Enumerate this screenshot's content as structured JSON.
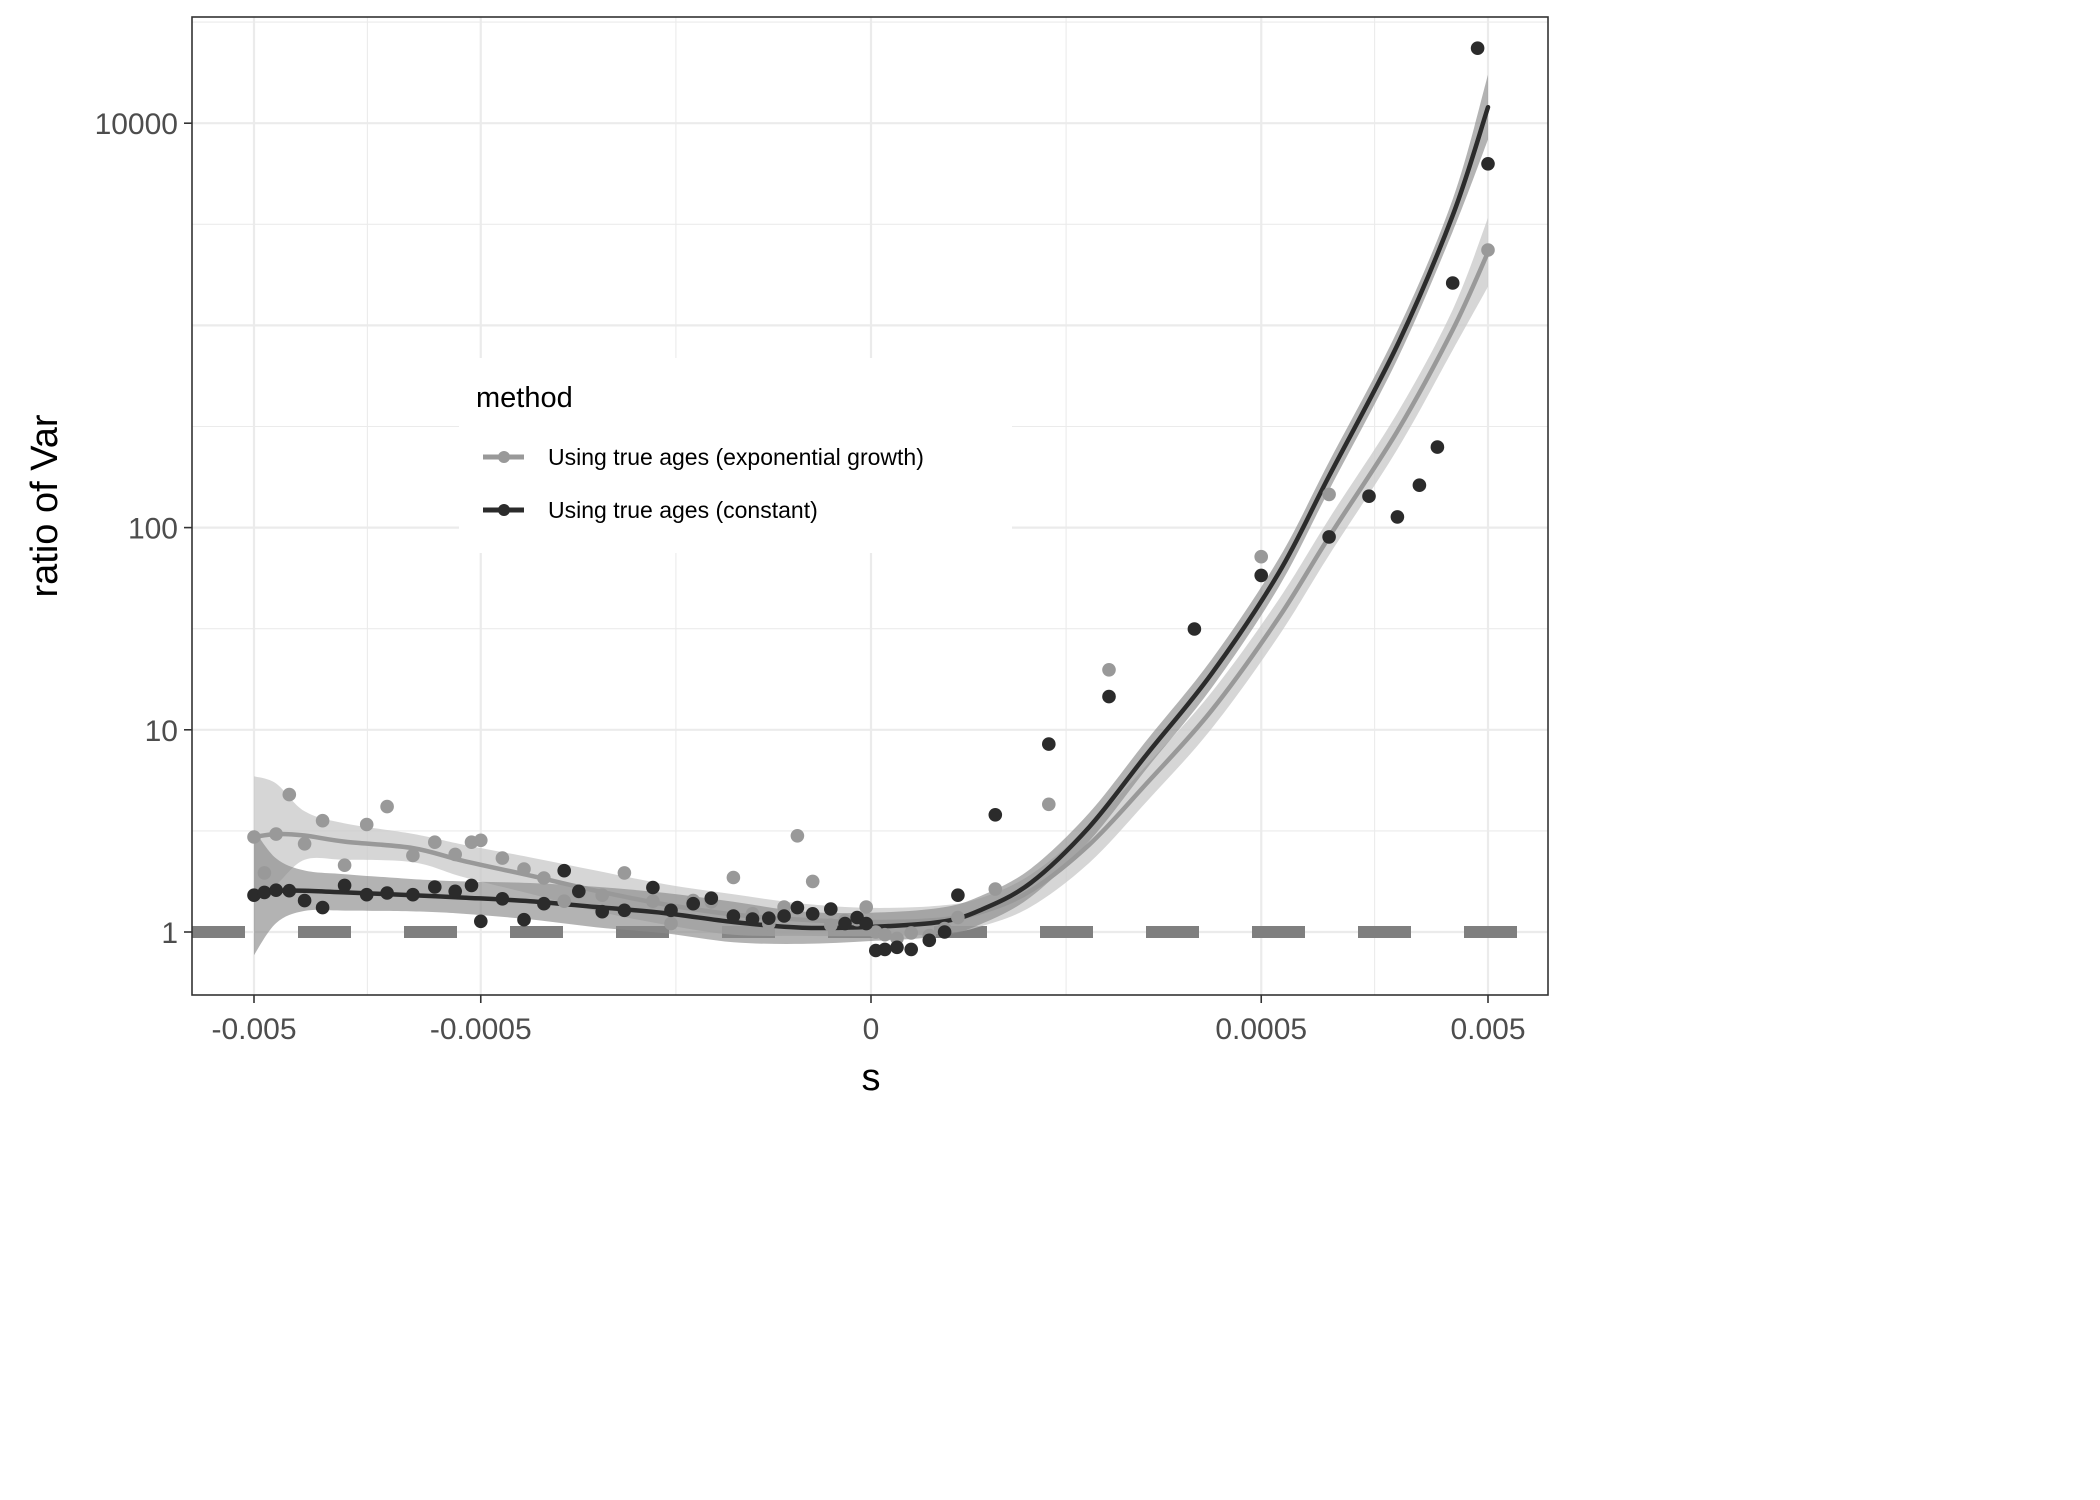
{
  "chart_data": {
    "type": "scatter",
    "xlabel": "s",
    "ylabel": "ratio of Var",
    "x_scale": "pseudo-log (symmetric)",
    "y_scale": "log10",
    "x_ticks": [
      {
        "value": -0.005,
        "label": "-0.005"
      },
      {
        "value": -0.0005,
        "label": "-0.0005"
      },
      {
        "value": 0,
        "label": "0"
      },
      {
        "value": 0.0005,
        "label": "0.0005"
      },
      {
        "value": 0.005,
        "label": "0.005"
      }
    ],
    "y_ticks": [
      {
        "value": 1,
        "label": "1"
      },
      {
        "value": 10,
        "label": "10"
      },
      {
        "value": 100,
        "label": "100"
      },
      {
        "value": 10000,
        "label": "10000"
      }
    ],
    "ylim": [
      0.32,
      69000
    ],
    "grid": true,
    "reference_line": {
      "y": 1,
      "style": "dashed",
      "color": "#7f7f7f"
    },
    "legend": {
      "title": "method",
      "position": "inside-left-center",
      "entries": [
        {
          "label": "Using true ages (exponential growth)",
          "color": "#999999"
        },
        {
          "label": "Using true ages (constant)",
          "color": "#2b2b2b"
        }
      ]
    },
    "series": [
      {
        "name": "Using true ages (exponential growth)",
        "color": "#999999",
        "band_color": "#c8c8c8",
        "points": [
          {
            "x": -0.005,
            "y": 2.95
          },
          {
            "x": -0.0045,
            "y": 1.96
          },
          {
            "x": -0.004,
            "y": 3.05
          },
          {
            "x": -0.0035,
            "y": 4.78
          },
          {
            "x": -0.003,
            "y": 2.73
          },
          {
            "x": -0.0025,
            "y": 3.55
          },
          {
            "x": -0.002,
            "y": 2.14
          },
          {
            "x": -0.0016,
            "y": 3.4
          },
          {
            "x": -0.0013,
            "y": 4.17
          },
          {
            "x": -0.001,
            "y": 2.39
          },
          {
            "x": -0.0008,
            "y": 2.78
          },
          {
            "x": -0.00065,
            "y": 2.42
          },
          {
            "x": -0.00055,
            "y": 2.78
          },
          {
            "x": -0.0005,
            "y": 2.84
          },
          {
            "x": -0.0004,
            "y": 2.32
          },
          {
            "x": -0.00032,
            "y": 2.05
          },
          {
            "x": -0.00026,
            "y": 1.85
          },
          {
            "x": -0.00021,
            "y": 1.42
          },
          {
            "x": -0.00018,
            "y": 1.58
          },
          {
            "x": -0.00014,
            "y": 1.52
          },
          {
            "x": -0.00011,
            "y": 1.96
          },
          {
            "x": -8e-05,
            "y": 1.42
          },
          {
            "x": -6.5e-05,
            "y": 1.1
          },
          {
            "x": -5e-05,
            "y": 1.43
          },
          {
            "x": -4e-05,
            "y": 1.41
          },
          {
            "x": -3e-05,
            "y": 1.86
          },
          {
            "x": -2.3e-05,
            "y": 1.23
          },
          {
            "x": -1.8e-05,
            "y": 1.1
          },
          {
            "x": -1.4e-05,
            "y": 1.33
          },
          {
            "x": -1.1e-05,
            "y": 2.99
          },
          {
            "x": -8e-06,
            "y": 1.78
          },
          {
            "x": -5e-06,
            "y": 1.08
          },
          {
            "x": -3e-06,
            "y": 1.14
          },
          {
            "x": -1.5e-06,
            "y": 1.15
          },
          {
            "x": -5e-07,
            "y": 1.33
          },
          {
            "x": 5e-07,
            "y": 1.0
          },
          {
            "x": 1.5e-06,
            "y": 0.97
          },
          {
            "x": 3e-06,
            "y": 0.93
          },
          {
            "x": 5e-06,
            "y": 0.99
          },
          {
            "x": 8e-06,
            "y": 0.96
          },
          {
            "x": 1.1e-05,
            "y": 1.04
          },
          {
            "x": 1.4e-05,
            "y": 1.18
          },
          {
            "x": 2.5e-05,
            "y": 1.63
          },
          {
            "x": 5e-05,
            "y": 4.28
          },
          {
            "x": 0.0001,
            "y": 19.8
          },
          {
            "x": 0.0005,
            "y": 71.8
          },
          {
            "x": 0.001,
            "y": 146
          },
          {
            "x": 0.005,
            "y": 2360
          }
        ],
        "trend": [
          {
            "x": -0.005,
            "y": 2.95
          },
          {
            "x": -0.004,
            "y": 3.05
          },
          {
            "x": -0.003,
            "y": 3.0
          },
          {
            "x": -0.002,
            "y": 2.8
          },
          {
            "x": -0.001,
            "y": 2.6
          },
          {
            "x": -0.0006,
            "y": 2.25
          },
          {
            "x": -0.0003,
            "y": 1.9
          },
          {
            "x": -0.00015,
            "y": 1.6
          },
          {
            "x": -7e-05,
            "y": 1.37
          },
          {
            "x": -3e-05,
            "y": 1.22
          },
          {
            "x": -1e-05,
            "y": 1.15
          },
          {
            "x": 0,
            "y": 1.12
          },
          {
            "x": 1e-05,
            "y": 1.15
          },
          {
            "x": 2e-05,
            "y": 1.25
          },
          {
            "x": 4e-05,
            "y": 1.6
          },
          {
            "x": 8e-05,
            "y": 2.7
          },
          {
            "x": 0.00015,
            "y": 5.4
          },
          {
            "x": 0.0003,
            "y": 12.5
          },
          {
            "x": 0.0006,
            "y": 36
          },
          {
            "x": 0.001,
            "y": 90
          },
          {
            "x": 0.002,
            "y": 300
          },
          {
            "x": 0.0035,
            "y": 950
          },
          {
            "x": 0.005,
            "y": 2300
          }
        ]
      },
      {
        "name": "Using true ages (constant)",
        "color": "#2b2b2b",
        "band_color": "#8a8a8a",
        "points": [
          {
            "x": -0.005,
            "y": 1.52
          },
          {
            "x": -0.0045,
            "y": 1.57
          },
          {
            "x": -0.004,
            "y": 1.61
          },
          {
            "x": -0.0035,
            "y": 1.6
          },
          {
            "x": -0.003,
            "y": 1.43
          },
          {
            "x": -0.0025,
            "y": 1.32
          },
          {
            "x": -0.002,
            "y": 1.7
          },
          {
            "x": -0.0016,
            "y": 1.53
          },
          {
            "x": -0.0013,
            "y": 1.56
          },
          {
            "x": -0.001,
            "y": 1.53
          },
          {
            "x": -0.0008,
            "y": 1.67
          },
          {
            "x": -0.00065,
            "y": 1.59
          },
          {
            "x": -0.00055,
            "y": 1.7
          },
          {
            "x": -0.0005,
            "y": 1.13
          },
          {
            "x": -0.0004,
            "y": 1.46
          },
          {
            "x": -0.00032,
            "y": 1.15
          },
          {
            "x": -0.00026,
            "y": 1.38
          },
          {
            "x": -0.00021,
            "y": 2.01
          },
          {
            "x": -0.00018,
            "y": 1.59
          },
          {
            "x": -0.00014,
            "y": 1.26
          },
          {
            "x": -0.00011,
            "y": 1.28
          },
          {
            "x": -8e-05,
            "y": 1.66
          },
          {
            "x": -6.5e-05,
            "y": 1.28
          },
          {
            "x": -5e-05,
            "y": 1.38
          },
          {
            "x": -4e-05,
            "y": 1.47
          },
          {
            "x": -3e-05,
            "y": 1.2
          },
          {
            "x": -2.3e-05,
            "y": 1.16
          },
          {
            "x": -1.8e-05,
            "y": 1.17
          },
          {
            "x": -1.4e-05,
            "y": 1.2
          },
          {
            "x": -1.1e-05,
            "y": 1.32
          },
          {
            "x": -8e-06,
            "y": 1.23
          },
          {
            "x": -5e-06,
            "y": 1.3
          },
          {
            "x": -3e-06,
            "y": 1.1
          },
          {
            "x": -1.5e-06,
            "y": 1.18
          },
          {
            "x": -5e-07,
            "y": 1.1
          },
          {
            "x": 5e-07,
            "y": 0.81
          },
          {
            "x": 1.5e-06,
            "y": 0.82
          },
          {
            "x": 3e-06,
            "y": 0.84
          },
          {
            "x": 5e-06,
            "y": 0.82
          },
          {
            "x": 8e-06,
            "y": 0.91
          },
          {
            "x": 1.1e-05,
            "y": 1.0
          },
          {
            "x": 1.4e-05,
            "y": 1.52
          },
          {
            "x": 2.5e-05,
            "y": 3.8
          },
          {
            "x": 5e-05,
            "y": 8.5
          },
          {
            "x": 0.0001,
            "y": 14.6
          },
          {
            "x": 0.00025,
            "y": 31.5
          },
          {
            "x": 0.0005,
            "y": 58
          },
          {
            "x": 0.001,
            "y": 90
          },
          {
            "x": 0.0015,
            "y": 143
          },
          {
            "x": 0.002,
            "y": 113
          },
          {
            "x": 0.0025,
            "y": 162
          },
          {
            "x": 0.003,
            "y": 250
          },
          {
            "x": 0.0035,
            "y": 1620
          },
          {
            "x": 0.0045,
            "y": 23500
          },
          {
            "x": 0.005,
            "y": 6300
          }
        ],
        "trend": [
          {
            "x": -0.005,
            "y": 1.57
          },
          {
            "x": -0.004,
            "y": 1.6
          },
          {
            "x": -0.003,
            "y": 1.6
          },
          {
            "x": -0.002,
            "y": 1.57
          },
          {
            "x": -0.001,
            "y": 1.52
          },
          {
            "x": -0.0006,
            "y": 1.48
          },
          {
            "x": -0.0003,
            "y": 1.42
          },
          {
            "x": -0.00015,
            "y": 1.33
          },
          {
            "x": -7e-05,
            "y": 1.24
          },
          {
            "x": -3e-05,
            "y": 1.12
          },
          {
            "x": -1e-05,
            "y": 1.05
          },
          {
            "x": 0,
            "y": 1.06
          },
          {
            "x": 1e-05,
            "y": 1.12
          },
          {
            "x": 2e-05,
            "y": 1.28
          },
          {
            "x": 4e-05,
            "y": 1.75
          },
          {
            "x": 8e-05,
            "y": 3.3
          },
          {
            "x": 0.00015,
            "y": 7.5
          },
          {
            "x": 0.0003,
            "y": 19
          },
          {
            "x": 0.0006,
            "y": 60
          },
          {
            "x": 0.001,
            "y": 180
          },
          {
            "x": 0.002,
            "y": 800
          },
          {
            "x": 0.0035,
            "y": 3500
          },
          {
            "x": 0.005,
            "y": 12000
          }
        ]
      }
    ]
  }
}
